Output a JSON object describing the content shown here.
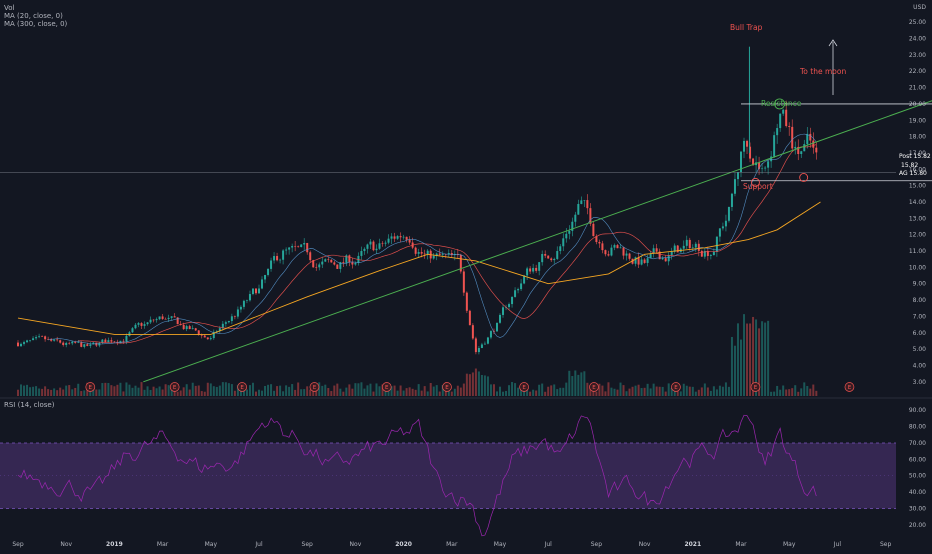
{
  "legend": {
    "vol": "Vol",
    "ma20": "MA (20, close, 0)",
    "ma300": "MA (300, close, 0)",
    "rsi": "RSI (14, close)"
  },
  "annotations": {
    "bull_trap": "Bull Trap",
    "to_the_moon": "To the moon",
    "resistance": "Resistance",
    "support": "Support"
  },
  "earnings_marker": "E",
  "price_tags": [
    {
      "label": "Post",
      "value": "15.82",
      "color": "#2962ff"
    },
    {
      "label": "",
      "value": "15.82",
      "color": "#f23645"
    },
    {
      "label": "AG",
      "value": "15.80",
      "color": "#f23645"
    }
  ],
  "colors": {
    "up": "#26a69a",
    "down": "#ef5350",
    "ma20": "#ef5350",
    "ma300": "#f5a623",
    "ma_blue": "#5b9bd5",
    "trend": "#4caf50",
    "rsi_line": "#9c27b0",
    "rsi_band": "#3c2a5a"
  },
  "chart_data": [
    {
      "type": "candlestick",
      "ticker": "AG",
      "currency": "USD",
      "x_tick_labels": [
        "Sep",
        "Nov",
        "2019",
        "Mar",
        "May",
        "Jul",
        "Sep",
        "Nov",
        "2020",
        "Mar",
        "May",
        "Jul",
        "Sep",
        "Nov",
        "2021",
        "Mar",
        "May",
        "Jul",
        "Sep"
      ],
      "y_tick_labels": [
        "3.00",
        "4.00",
        "5.00",
        "6.00",
        "7.00",
        "8.00",
        "9.00",
        "10.00",
        "11.00",
        "12.00",
        "13.00",
        "14.00",
        "15.00",
        "16.00",
        "17.00",
        "18.00",
        "19.00",
        "20.00",
        "21.00",
        "22.00",
        "23.00",
        "24.00",
        "25.00"
      ],
      "ylim": [
        2.5,
        25.5
      ],
      "key_points": [
        {
          "t": 0,
          "close": 5.4
        },
        {
          "t": 3,
          "close": 5.0
        },
        {
          "t": 6,
          "close": 6.8
        },
        {
          "t": 8,
          "close": 5.6
        },
        {
          "t": 10,
          "close": 8.5
        },
        {
          "t": 11,
          "close": 10.8
        },
        {
          "t": 13,
          "close": 10.0
        },
        {
          "t": 15,
          "close": 11.0
        },
        {
          "t": 16.3,
          "close": 12.3
        },
        {
          "t": 17,
          "close": 10.8
        },
        {
          "t": 18.3,
          "close": 10.0
        },
        {
          "t": 19,
          "close": 5.0
        },
        {
          "t": 20,
          "close": 6.8
        },
        {
          "t": 21,
          "close": 9.5
        },
        {
          "t": 22.5,
          "close": 11.5
        },
        {
          "t": 23.3,
          "close": 14.0
        },
        {
          "t": 24,
          "close": 12.0
        },
        {
          "t": 25,
          "close": 11.2
        },
        {
          "t": 26,
          "close": 10.2
        },
        {
          "t": 27.5,
          "close": 11.0
        },
        {
          "t": 28.8,
          "close": 11.4
        },
        {
          "t": 29.5,
          "close": 13.5
        },
        {
          "t": 30.2,
          "close": 18.0
        },
        {
          "t": 31.0,
          "close": 16.0
        },
        {
          "t": 31.6,
          "close": 19.8
        },
        {
          "t": 32.3,
          "close": 16.8
        },
        {
          "t": 32.8,
          "close": 17.4
        },
        {
          "t": 33.2,
          "close": 15.8
        }
      ],
      "spike": {
        "t": 30.35,
        "high": 23.5
      },
      "ma300_points": [
        {
          "t": 0,
          "v": 6.9
        },
        {
          "t": 4,
          "v": 5.9
        },
        {
          "t": 8,
          "v": 5.9
        },
        {
          "t": 12,
          "v": 8.2
        },
        {
          "t": 15,
          "v": 9.8
        },
        {
          "t": 17,
          "v": 10.8
        },
        {
          "t": 19,
          "v": 10.4
        },
        {
          "t": 22,
          "v": 9.0
        },
        {
          "t": 24.5,
          "v": 9.6
        },
        {
          "t": 26,
          "v": 10.8
        },
        {
          "t": 28.5,
          "v": 11.2
        },
        {
          "t": 30.3,
          "v": 11.7
        },
        {
          "t": 31.5,
          "v": 12.3
        },
        {
          "t": 33.3,
          "v": 14.0
        }
      ],
      "trendline": {
        "from": {
          "t": 5.2,
          "v": 3.0
        },
        "to": {
          "t": 38.7,
          "v": 20.6
        }
      },
      "resistance": {
        "from_t": 30.0,
        "to_t": 38.0,
        "v": 20.0
      },
      "support": {
        "from_t": 30.0,
        "to_t": 38.0,
        "v": 15.3
      },
      "current_price_line": 15.82,
      "earnings_t": [
        3.0,
        6.5,
        9.3,
        12.3,
        15.3,
        17.8,
        21.0,
        23.9,
        27.3,
        30.6,
        34.5
      ],
      "rsi": {
        "ylim": [
          12,
          95
        ],
        "y_tick_labels": [
          "10.00",
          "20.00",
          "30.00",
          "40.00",
          "50.00",
          "60.00",
          "70.00",
          "80.00",
          "90.00"
        ],
        "band": [
          30,
          70
        ],
        "key_points": [
          {
            "t": 0,
            "v": 50
          },
          {
            "t": 2,
            "v": 45
          },
          {
            "t": 3.2,
            "v": 38
          },
          {
            "t": 4.5,
            "v": 62
          },
          {
            "t": 6,
            "v": 72
          },
          {
            "t": 7.5,
            "v": 55
          },
          {
            "t": 9,
            "v": 58
          },
          {
            "t": 10.3,
            "v": 85
          },
          {
            "t": 11.5,
            "v": 73
          },
          {
            "t": 13,
            "v": 55
          },
          {
            "t": 15,
            "v": 68
          },
          {
            "t": 16.6,
            "v": 79
          },
          {
            "t": 17.5,
            "v": 44
          },
          {
            "t": 18.8,
            "v": 34
          },
          {
            "t": 19.3,
            "v": 15
          },
          {
            "t": 20.5,
            "v": 58
          },
          {
            "t": 21.8,
            "v": 72
          },
          {
            "t": 22.5,
            "v": 60
          },
          {
            "t": 23.6,
            "v": 88
          },
          {
            "t": 24.5,
            "v": 38
          },
          {
            "t": 25.5,
            "v": 44
          },
          {
            "t": 26.3,
            "v": 32
          },
          {
            "t": 27.5,
            "v": 60
          },
          {
            "t": 28.8,
            "v": 65
          },
          {
            "t": 29.5,
            "v": 74
          },
          {
            "t": 30.4,
            "v": 88
          },
          {
            "t": 31.0,
            "v": 55
          },
          {
            "t": 31.6,
            "v": 76
          },
          {
            "t": 32.5,
            "v": 47
          },
          {
            "t": 33.2,
            "v": 40
          }
        ]
      }
    }
  ]
}
